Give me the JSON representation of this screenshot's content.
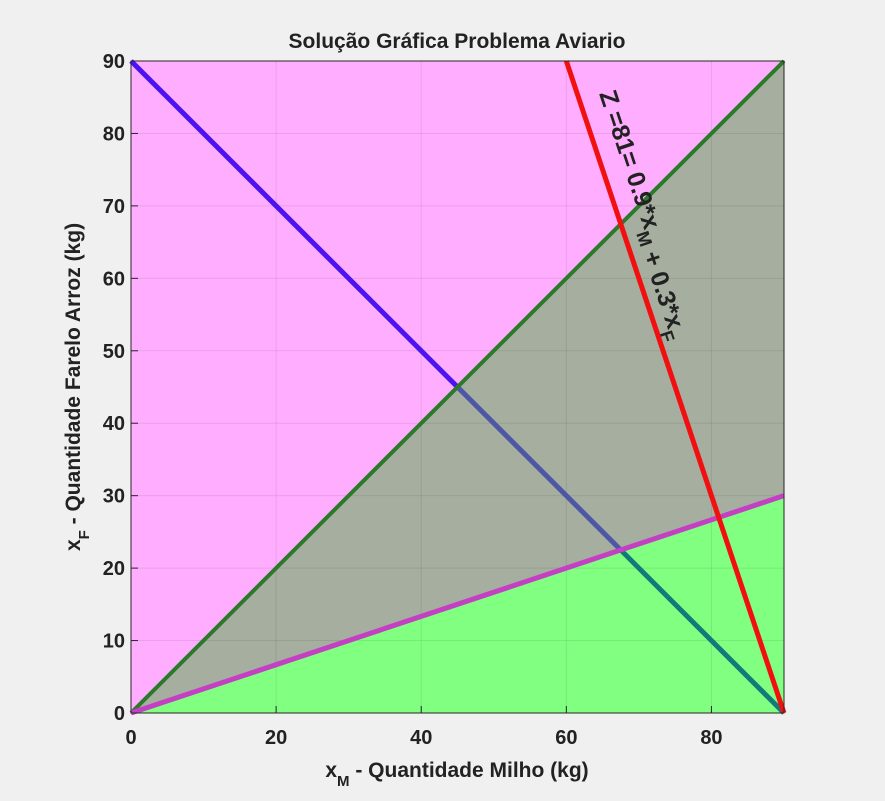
{
  "chart_data": {
    "type": "area",
    "title": "Solução Gráfica Problema Aviario",
    "xlabel": {
      "main": "x",
      "sub": "M",
      "rest": " - Quantidade Milho (kg)"
    },
    "ylabel": {
      "main": "x",
      "sub": "F",
      "rest": " - Quantidade Farelo Arroz (kg)"
    },
    "xlim": [
      0,
      90
    ],
    "ylim": [
      0,
      90
    ],
    "xticks": [
      0,
      20,
      40,
      60,
      80
    ],
    "yticks": [
      0,
      10,
      20,
      30,
      40,
      50,
      60,
      70,
      80,
      90
    ],
    "grid": true,
    "regions": [
      {
        "id": "region-upper",
        "color": "#ffadff",
        "points": [
          [
            0,
            0
          ],
          [
            90,
            90
          ],
          [
            0,
            90
          ]
        ]
      },
      {
        "id": "region-feasible",
        "color": "#a5ae9f",
        "points": [
          [
            0,
            0
          ],
          [
            90,
            90
          ],
          [
            90,
            30
          ]
        ]
      },
      {
        "id": "region-lower",
        "color": "#80ff80",
        "points": [
          [
            0,
            0
          ],
          [
            90,
            30
          ],
          [
            90,
            0
          ]
        ]
      }
    ],
    "series": [
      {
        "id": "line-xm-plus-xf-90",
        "color": "#4b12f2",
        "width": 5,
        "points": [
          [
            0,
            90
          ],
          [
            45,
            45
          ]
        ]
      },
      {
        "id": "line-xm-plus-xf-90-inside",
        "color": "#4c58a6",
        "width": 5,
        "points": [
          [
            45,
            45
          ],
          [
            67.5,
            22.5
          ]
        ]
      },
      {
        "id": "line-xm-plus-xf-90-lower",
        "color": "#117b7b",
        "width": 5,
        "points": [
          [
            67.5,
            22.5
          ],
          [
            90,
            0
          ]
        ]
      },
      {
        "id": "line-xf-equals-xm",
        "color": "#2a7a2a",
        "width": 4,
        "points": [
          [
            0,
            0
          ],
          [
            90,
            90
          ]
        ]
      },
      {
        "id": "line-xf-third-xm",
        "color": "#c43fc4",
        "width": 5,
        "points": [
          [
            0,
            0
          ],
          [
            90,
            30
          ]
        ]
      },
      {
        "id": "line-objective-z81",
        "color": "#f20f0f",
        "width": 5,
        "points": [
          [
            60,
            90
          ],
          [
            90,
            0
          ]
        ]
      }
    ],
    "annotations": [
      {
        "id": "objective-label",
        "parts": [
          {
            "text": "Z =81= 0.9*x"
          },
          {
            "text": "M",
            "sub": true
          },
          {
            "text": " + 0.3*x"
          },
          {
            "text": "F",
            "sub": true
          }
        ],
        "x": 64.5,
        "y": 85.5,
        "rotation": 71.6
      }
    ]
  }
}
